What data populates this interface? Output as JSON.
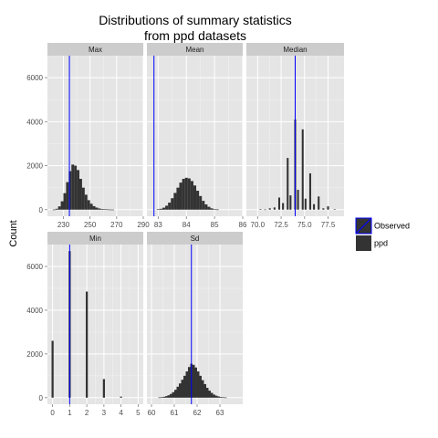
{
  "chart_data": {
    "type": "bar",
    "title_lines": [
      "Distributions of summary statistics",
      "from ppd datasets"
    ],
    "ylabel": "Count",
    "xlabel": "",
    "grid": true,
    "legend_position": "right",
    "legend": [
      {
        "name": "Observed",
        "color": "#0000ff",
        "kind": "line"
      },
      {
        "name": "ppd",
        "color": "#333333",
        "kind": "fill"
      }
    ],
    "colors": {
      "panel_bg": "#e5e5e5",
      "strip_bg": "#cccccc",
      "grid": "#ffffff",
      "bar": "#333333",
      "observed": "#0000ff"
    },
    "facets": [
      {
        "name": "Max",
        "xlim": [
          218,
          290
        ],
        "xticks": [
          230,
          250,
          270,
          290
        ],
        "xtick_labels": [
          "230",
          "250",
          "270",
          "290"
        ],
        "ylim": [
          -300,
          7000
        ],
        "yticks": [
          0,
          2000,
          4000,
          6000
        ],
        "ytick_labels": [
          "0",
          "2000",
          "4000",
          "6000"
        ],
        "observed": 234.5,
        "bins": [
          {
            "x0": 222,
            "x1": 224,
            "count": 5
          },
          {
            "x0": 224,
            "x1": 226,
            "count": 40
          },
          {
            "x0": 226,
            "x1": 228,
            "count": 150
          },
          {
            "x0": 228,
            "x1": 230,
            "count": 380
          },
          {
            "x0": 230,
            "x1": 232,
            "count": 750
          },
          {
            "x0": 232,
            "x1": 234,
            "count": 1250
          },
          {
            "x0": 234,
            "x1": 236,
            "count": 1750
          },
          {
            "x0": 236,
            "x1": 238,
            "count": 2050
          },
          {
            "x0": 238,
            "x1": 240,
            "count": 2000
          },
          {
            "x0": 240,
            "x1": 242,
            "count": 1800
          },
          {
            "x0": 242,
            "x1": 244,
            "count": 1400
          },
          {
            "x0": 244,
            "x1": 246,
            "count": 1000
          },
          {
            "x0": 246,
            "x1": 248,
            "count": 680
          },
          {
            "x0": 248,
            "x1": 250,
            "count": 430
          },
          {
            "x0": 250,
            "x1": 252,
            "count": 270
          },
          {
            "x0": 252,
            "x1": 254,
            "count": 160
          },
          {
            "x0": 254,
            "x1": 256,
            "count": 95
          },
          {
            "x0": 256,
            "x1": 258,
            "count": 55
          },
          {
            "x0": 258,
            "x1": 260,
            "count": 30
          },
          {
            "x0": 260,
            "x1": 262,
            "count": 18
          },
          {
            "x0": 262,
            "x1": 264,
            "count": 10
          },
          {
            "x0": 264,
            "x1": 266,
            "count": 5
          },
          {
            "x0": 266,
            "x1": 268,
            "count": 3
          }
        ]
      },
      {
        "name": "Mean",
        "xlim": [
          82.6,
          86.0
        ],
        "xticks": [
          83,
          84,
          85,
          86
        ],
        "xtick_labels": [
          "83",
          "84",
          "85",
          "86"
        ],
        "ylim": [
          -300,
          7000
        ],
        "yticks": [
          0,
          2000,
          4000,
          6000
        ],
        "observed": 82.85,
        "bins": [
          {
            "x0": 82.95,
            "x1": 83.05,
            "count": 15
          },
          {
            "x0": 83.05,
            "x1": 83.15,
            "count": 40
          },
          {
            "x0": 83.15,
            "x1": 83.25,
            "count": 90
          },
          {
            "x0": 83.25,
            "x1": 83.35,
            "count": 180
          },
          {
            "x0": 83.35,
            "x1": 83.45,
            "count": 320
          },
          {
            "x0": 83.45,
            "x1": 83.55,
            "count": 520
          },
          {
            "x0": 83.55,
            "x1": 83.65,
            "count": 760
          },
          {
            "x0": 83.65,
            "x1": 83.75,
            "count": 1000
          },
          {
            "x0": 83.75,
            "x1": 83.85,
            "count": 1230
          },
          {
            "x0": 83.85,
            "x1": 83.95,
            "count": 1400
          },
          {
            "x0": 83.95,
            "x1": 84.05,
            "count": 1450
          },
          {
            "x0": 84.05,
            "x1": 84.15,
            "count": 1420
          },
          {
            "x0": 84.15,
            "x1": 84.25,
            "count": 1300
          },
          {
            "x0": 84.25,
            "x1": 84.35,
            "count": 1100
          },
          {
            "x0": 84.35,
            "x1": 84.45,
            "count": 860
          },
          {
            "x0": 84.45,
            "x1": 84.55,
            "count": 620
          },
          {
            "x0": 84.55,
            "x1": 84.65,
            "count": 400
          },
          {
            "x0": 84.65,
            "x1": 84.75,
            "count": 240
          },
          {
            "x0": 84.75,
            "x1": 84.85,
            "count": 130
          },
          {
            "x0": 84.85,
            "x1": 84.95,
            "count": 60
          },
          {
            "x0": 84.95,
            "x1": 85.05,
            "count": 25
          },
          {
            "x0": 85.05,
            "x1": 85.15,
            "count": 10
          }
        ]
      },
      {
        "name": "Median",
        "xlim": [
          68.8,
          79.2
        ],
        "xticks": [
          70.0,
          72.5,
          75.0,
          77.5
        ],
        "xtick_labels": [
          "70.0",
          "72.5",
          "75.0",
          "77.5"
        ],
        "ylim": [
          -300,
          7000
        ],
        "yticks": [
          0,
          2000,
          4000,
          6000
        ],
        "observed": 74.0,
        "bins": [
          {
            "x0": 70.2,
            "x1": 70.4,
            "count": 20
          },
          {
            "x0": 70.7,
            "x1": 70.9,
            "count": 10
          },
          {
            "x0": 71.2,
            "x1": 71.4,
            "count": 60
          },
          {
            "x0": 71.7,
            "x1": 71.9,
            "count": 100
          },
          {
            "x0": 72.2,
            "x1": 72.4,
            "count": 550
          },
          {
            "x0": 72.6,
            "x1": 72.8,
            "count": 300
          },
          {
            "x0": 73.1,
            "x1": 73.3,
            "count": 2350
          },
          {
            "x0": 73.4,
            "x1": 73.6,
            "count": 650
          },
          {
            "x0": 73.9,
            "x1": 74.1,
            "count": 4100
          },
          {
            "x0": 74.2,
            "x1": 74.4,
            "count": 900
          },
          {
            "x0": 74.7,
            "x1": 74.9,
            "count": 3650
          },
          {
            "x0": 75.0,
            "x1": 75.2,
            "count": 500
          },
          {
            "x0": 75.5,
            "x1": 75.7,
            "count": 1650
          },
          {
            "x0": 75.9,
            "x1": 76.1,
            "count": 250
          },
          {
            "x0": 76.4,
            "x1": 76.6,
            "count": 600
          },
          {
            "x0": 76.9,
            "x1": 77.1,
            "count": 60
          },
          {
            "x0": 77.4,
            "x1": 77.6,
            "count": 150
          },
          {
            "x0": 78.1,
            "x1": 78.3,
            "count": 25
          }
        ]
      },
      {
        "name": "Min",
        "xlim": [
          -0.3,
          5.3
        ],
        "xticks": [
          0,
          1,
          2,
          3,
          4,
          5
        ],
        "xtick_labels": [
          "0",
          "1",
          "2",
          "3",
          "4",
          "5"
        ],
        "ylim": [
          -300,
          7000
        ],
        "yticks": [
          0,
          2000,
          4000,
          6000
        ],
        "ytick_labels": [
          "0",
          "2000",
          "4000",
          "6000"
        ],
        "observed": 1.0,
        "bins": [
          {
            "x0": -0.06,
            "x1": 0.06,
            "count": 2600
          },
          {
            "x0": 0.94,
            "x1": 1.06,
            "count": 6700
          },
          {
            "x0": 1.94,
            "x1": 2.06,
            "count": 4850
          },
          {
            "x0": 2.94,
            "x1": 3.06,
            "count": 850
          },
          {
            "x0": 3.94,
            "x1": 4.06,
            "count": 50
          }
        ]
      },
      {
        "name": "Sd",
        "xlim": [
          59.8,
          64.0
        ],
        "xticks": [
          60,
          61,
          62,
          63
        ],
        "xtick_labels": [
          "60",
          "61",
          "62",
          "63"
        ],
        "ylim": [
          -300,
          7000
        ],
        "yticks": [
          0,
          2000,
          4000,
          6000
        ],
        "observed": 61.75,
        "bins": [
          {
            "x0": 60.3,
            "x1": 60.4,
            "count": 10
          },
          {
            "x0": 60.4,
            "x1": 60.5,
            "count": 20
          },
          {
            "x0": 60.5,
            "x1": 60.6,
            "count": 40
          },
          {
            "x0": 60.6,
            "x1": 60.7,
            "count": 70
          },
          {
            "x0": 60.7,
            "x1": 60.8,
            "count": 110
          },
          {
            "x0": 60.8,
            "x1": 60.9,
            "count": 170
          },
          {
            "x0": 60.9,
            "x1": 61.0,
            "count": 250
          },
          {
            "x0": 61.0,
            "x1": 61.1,
            "count": 360
          },
          {
            "x0": 61.1,
            "x1": 61.2,
            "count": 500
          },
          {
            "x0": 61.2,
            "x1": 61.3,
            "count": 650
          },
          {
            "x0": 61.3,
            "x1": 61.4,
            "count": 820
          },
          {
            "x0": 61.4,
            "x1": 61.5,
            "count": 1000
          },
          {
            "x0": 61.5,
            "x1": 61.6,
            "count": 1200
          },
          {
            "x0": 61.6,
            "x1": 61.7,
            "count": 1400
          },
          {
            "x0": 61.7,
            "x1": 61.8,
            "count": 1550
          },
          {
            "x0": 61.8,
            "x1": 61.9,
            "count": 1500
          },
          {
            "x0": 61.9,
            "x1": 62.0,
            "count": 1380
          },
          {
            "x0": 62.0,
            "x1": 62.1,
            "count": 1200
          },
          {
            "x0": 62.1,
            "x1": 62.2,
            "count": 1000
          },
          {
            "x0": 62.2,
            "x1": 62.3,
            "count": 800
          },
          {
            "x0": 62.3,
            "x1": 62.4,
            "count": 620
          },
          {
            "x0": 62.4,
            "x1": 62.5,
            "count": 450
          },
          {
            "x0": 62.5,
            "x1": 62.6,
            "count": 320
          },
          {
            "x0": 62.6,
            "x1": 62.7,
            "count": 220
          },
          {
            "x0": 62.7,
            "x1": 62.8,
            "count": 140
          },
          {
            "x0": 62.8,
            "x1": 62.9,
            "count": 90
          },
          {
            "x0": 62.9,
            "x1": 63.0,
            "count": 55
          },
          {
            "x0": 63.0,
            "x1": 63.1,
            "count": 30
          },
          {
            "x0": 63.1,
            "x1": 63.2,
            "count": 15
          },
          {
            "x0": 63.2,
            "x1": 63.3,
            "count": 8
          }
        ]
      }
    ]
  }
}
